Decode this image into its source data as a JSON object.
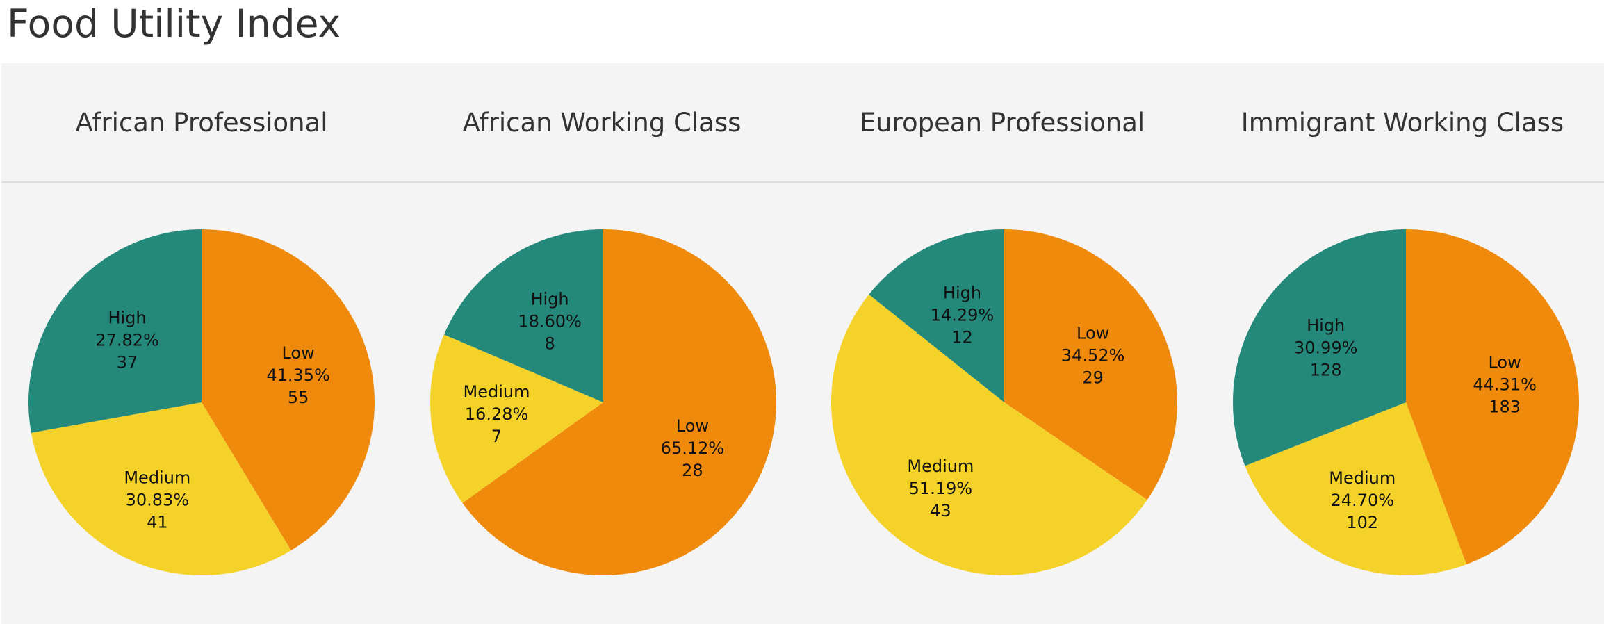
{
  "title": "Food Utility Index",
  "colors": {
    "Low": "#EF8A0C",
    "Medium": "#F5D22A",
    "High": "#24897B",
    "panel_background": "#F4F4F4"
  },
  "chart_data": [
    {
      "type": "pie",
      "title": "African Professional",
      "slices": [
        {
          "label": "Low",
          "percent": "41.35%",
          "count": 55
        },
        {
          "label": "Medium",
          "percent": "30.83%",
          "count": 41
        },
        {
          "label": "High",
          "percent": "27.82%",
          "count": 37
        }
      ]
    },
    {
      "type": "pie",
      "title": "African Working Class",
      "slices": [
        {
          "label": "Low",
          "percent": "65.12%",
          "count": 28
        },
        {
          "label": "Medium",
          "percent": "16.28%",
          "count": 7
        },
        {
          "label": "High",
          "percent": "18.60%",
          "count": 8
        }
      ]
    },
    {
      "type": "pie",
      "title": "European Professional",
      "slices": [
        {
          "label": "Low",
          "percent": "34.52%",
          "count": 29
        },
        {
          "label": "Medium",
          "percent": "51.19%",
          "count": 43
        },
        {
          "label": "High",
          "percent": "14.29%",
          "count": 12
        }
      ]
    },
    {
      "type": "pie",
      "title": "Immigrant Working Class",
      "slices": [
        {
          "label": "Low",
          "percent": "44.31%",
          "count": 183
        },
        {
          "label": "Medium",
          "percent": "24.70%",
          "count": 102
        },
        {
          "label": "High",
          "percent": "30.99%",
          "count": 128
        }
      ]
    }
  ]
}
